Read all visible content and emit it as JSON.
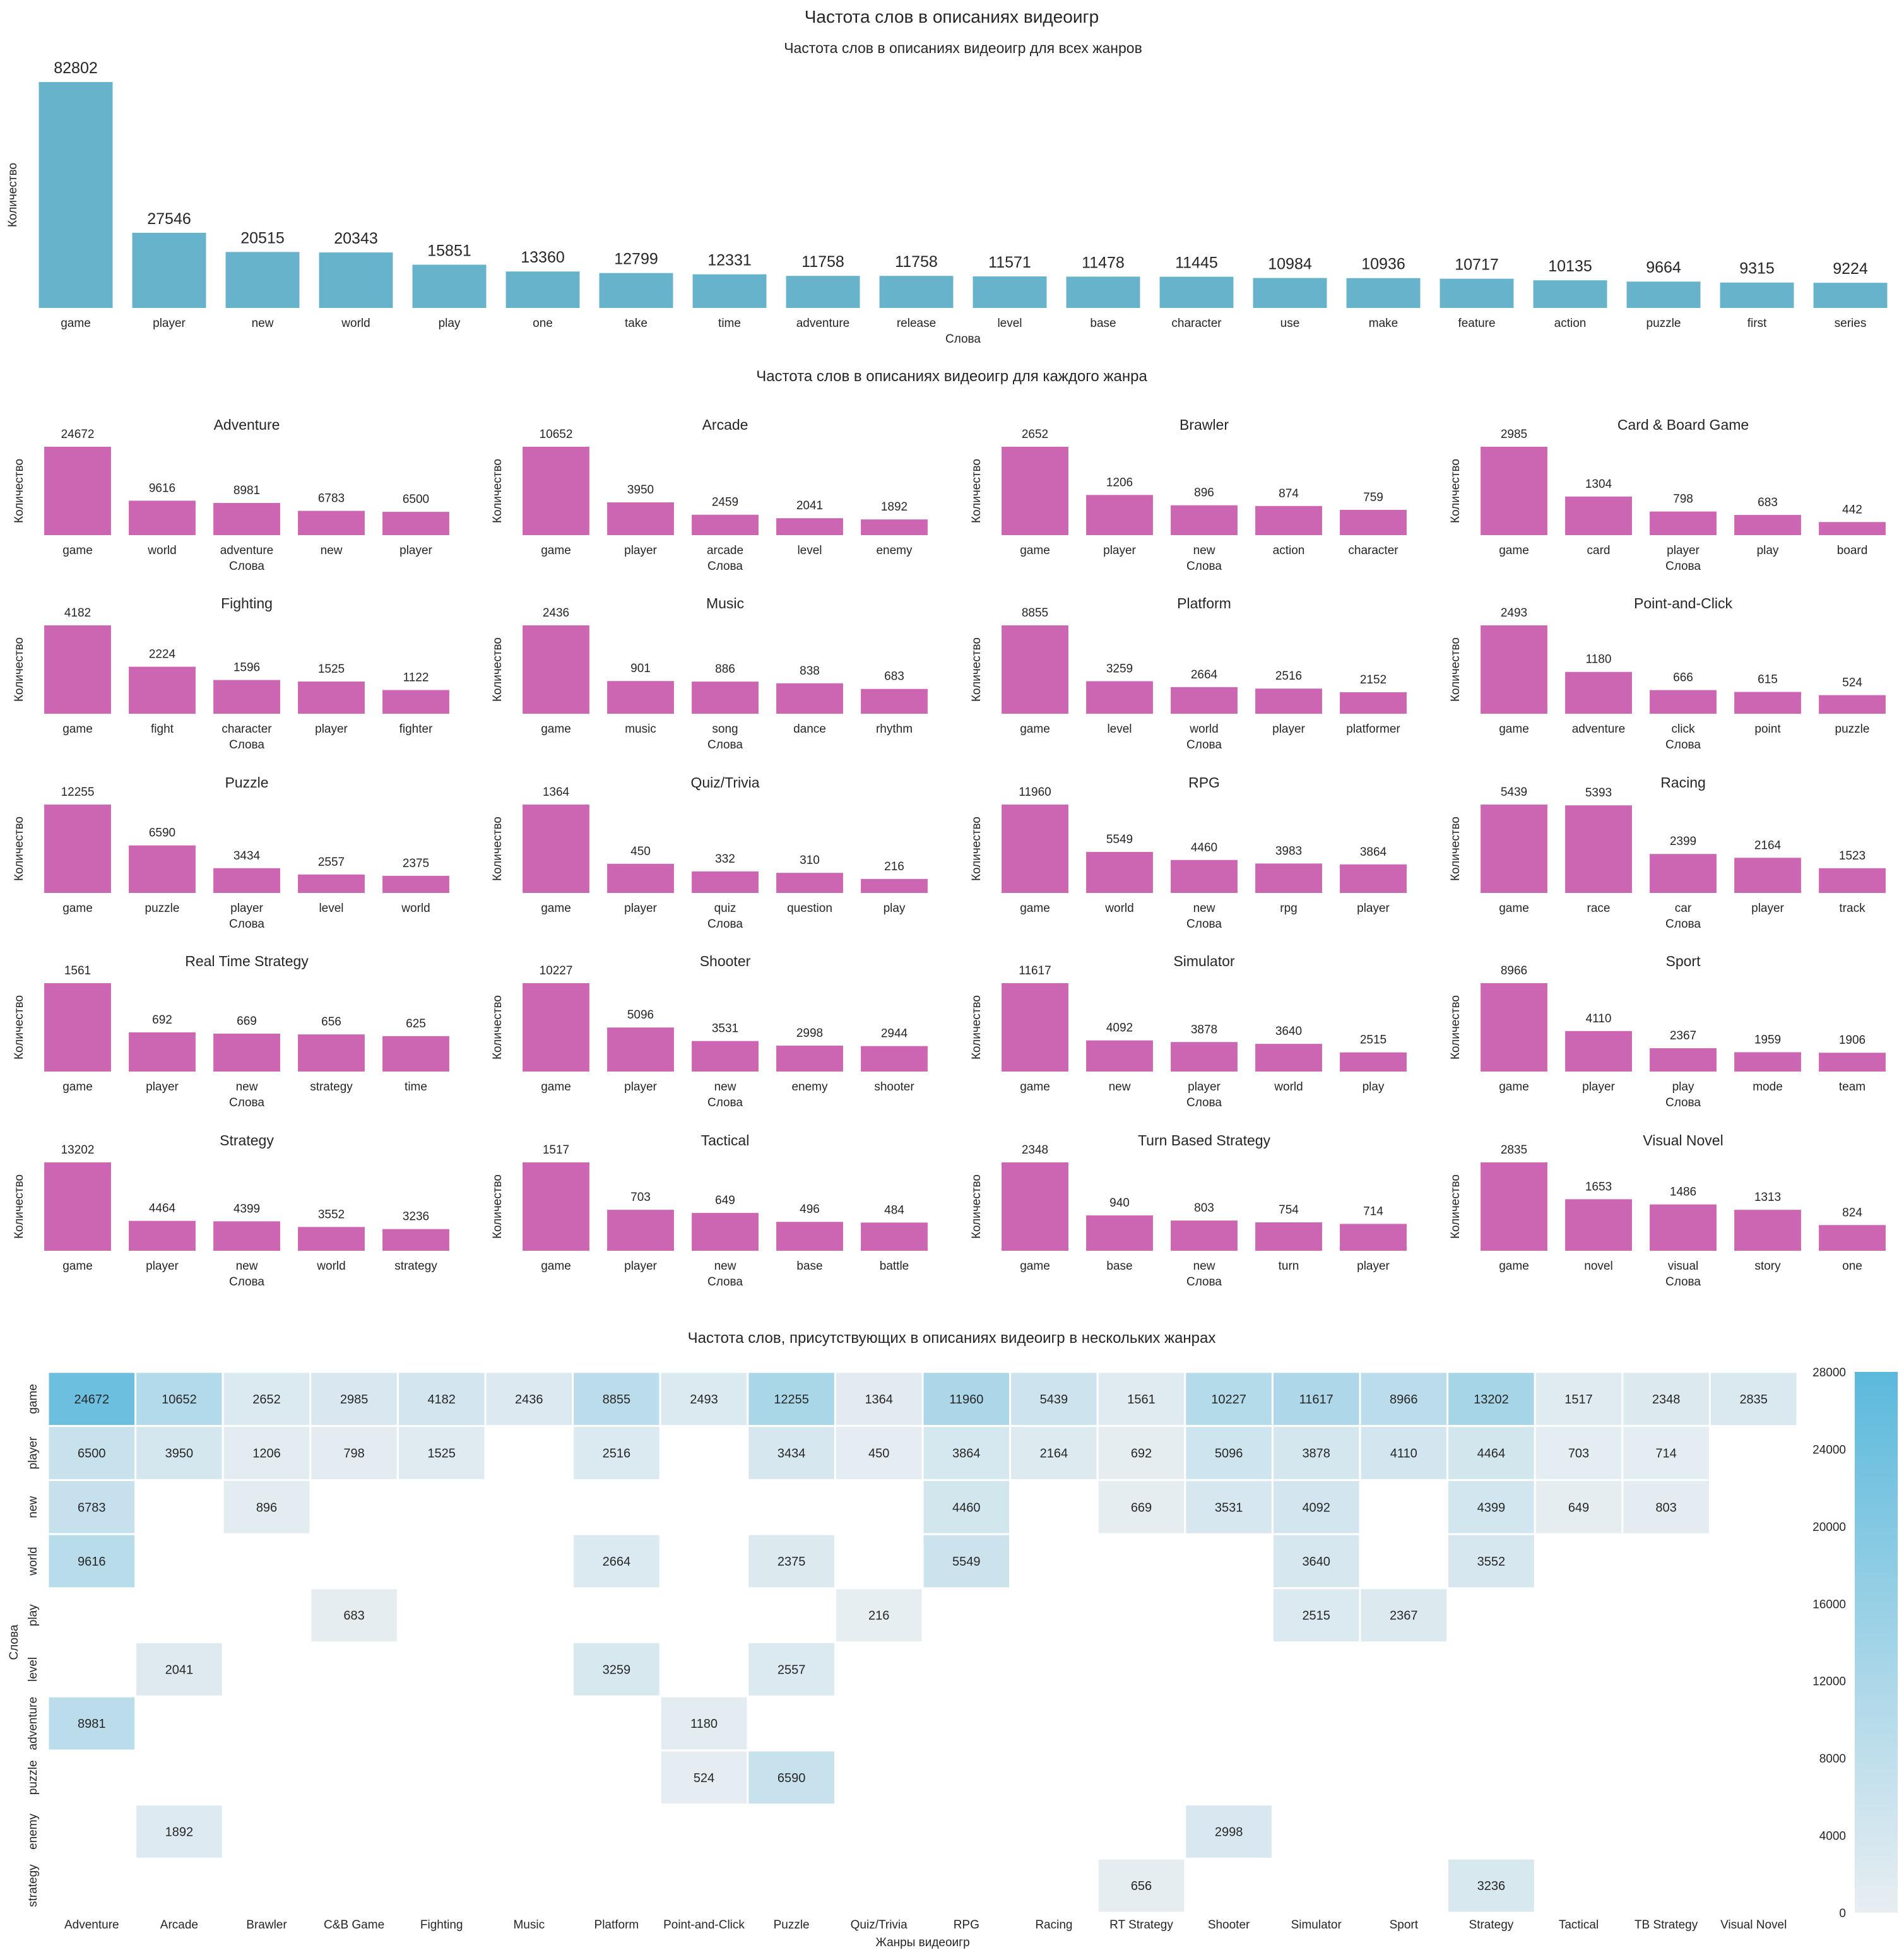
{
  "figure": {
    "title": "Частота слов в описаниях видеоигр",
    "section_genre_title": "Частота слов в описаниях видеоигр для каждого жанра"
  },
  "colors": {
    "top_bar": "#67b3cc",
    "genre_bar": "#cc66b2",
    "heat_low": "#e8eef2",
    "heat_high": "#5bb9dc"
  },
  "chart_data": [
    {
      "type": "bar",
      "title": "Частота слов в описаниях видеоигр для всех жанров",
      "xlabel": "Слова",
      "ylabel": "Количество",
      "categories": [
        "game",
        "player",
        "new",
        "world",
        "play",
        "one",
        "take",
        "time",
        "adventure",
        "release",
        "level",
        "base",
        "character",
        "use",
        "make",
        "feature",
        "action",
        "puzzle",
        "first",
        "series"
      ],
      "values": [
        82802,
        27546,
        20515,
        20343,
        15851,
        13360,
        12799,
        12331,
        11758,
        11758,
        11571,
        11478,
        11445,
        10984,
        10936,
        10717,
        10135,
        9664,
        9315,
        9224
      ]
    },
    {
      "type": "bar",
      "title": "Adventure",
      "xlabel": "Слова",
      "ylabel": "Количество",
      "categories": [
        "game",
        "world",
        "adventure",
        "new",
        "player"
      ],
      "values": [
        24672,
        9616,
        8981,
        6783,
        6500
      ]
    },
    {
      "type": "bar",
      "title": "Arcade",
      "xlabel": "Слова",
      "ylabel": "Количество",
      "categories": [
        "game",
        "player",
        "arcade",
        "level",
        "enemy"
      ],
      "values": [
        10652,
        3950,
        2459,
        2041,
        1892
      ]
    },
    {
      "type": "bar",
      "title": "Brawler",
      "xlabel": "Слова",
      "ylabel": "Количество",
      "categories": [
        "game",
        "player",
        "new",
        "action",
        "character"
      ],
      "values": [
        2652,
        1206,
        896,
        874,
        759
      ]
    },
    {
      "type": "bar",
      "title": "Card & Board Game",
      "xlabel": "Слова",
      "ylabel": "Количество",
      "categories": [
        "game",
        "card",
        "player",
        "play",
        "board"
      ],
      "values": [
        2985,
        1304,
        798,
        683,
        442
      ]
    },
    {
      "type": "bar",
      "title": "Fighting",
      "xlabel": "Слова",
      "ylabel": "Количество",
      "categories": [
        "game",
        "fight",
        "character",
        "player",
        "fighter"
      ],
      "values": [
        4182,
        2224,
        1596,
        1525,
        1122
      ]
    },
    {
      "type": "bar",
      "title": "Music",
      "xlabel": "Слова",
      "ylabel": "Количество",
      "categories": [
        "game",
        "music",
        "song",
        "dance",
        "rhythm"
      ],
      "values": [
        2436,
        901,
        886,
        838,
        683
      ]
    },
    {
      "type": "bar",
      "title": "Platform",
      "xlabel": "Слова",
      "ylabel": "Количество",
      "categories": [
        "game",
        "level",
        "world",
        "player",
        "platformer"
      ],
      "values": [
        8855,
        3259,
        2664,
        2516,
        2152
      ]
    },
    {
      "type": "bar",
      "title": "Point-and-Click",
      "xlabel": "Слова",
      "ylabel": "Количество",
      "categories": [
        "game",
        "adventure",
        "click",
        "point",
        "puzzle"
      ],
      "values": [
        2493,
        1180,
        666,
        615,
        524
      ]
    },
    {
      "type": "bar",
      "title": "Puzzle",
      "xlabel": "Слова",
      "ylabel": "Количество",
      "categories": [
        "game",
        "puzzle",
        "player",
        "level",
        "world"
      ],
      "values": [
        12255,
        6590,
        3434,
        2557,
        2375
      ]
    },
    {
      "type": "bar",
      "title": "Quiz/Trivia",
      "xlabel": "Слова",
      "ylabel": "Количество",
      "categories": [
        "game",
        "player",
        "quiz",
        "question",
        "play"
      ],
      "values": [
        1364,
        450,
        332,
        310,
        216
      ]
    },
    {
      "type": "bar",
      "title": "RPG",
      "xlabel": "Слова",
      "ylabel": "Количество",
      "categories": [
        "game",
        "world",
        "new",
        "rpg",
        "player"
      ],
      "values": [
        11960,
        5549,
        4460,
        3983,
        3864
      ]
    },
    {
      "type": "bar",
      "title": "Racing",
      "xlabel": "Слова",
      "ylabel": "Количество",
      "categories": [
        "game",
        "race",
        "car",
        "player",
        "track"
      ],
      "values": [
        5439,
        5393,
        2399,
        2164,
        1523
      ]
    },
    {
      "type": "bar",
      "title": "Real Time Strategy",
      "xlabel": "Слова",
      "ylabel": "Количество",
      "categories": [
        "game",
        "player",
        "new",
        "strategy",
        "time"
      ],
      "values": [
        1561,
        692,
        669,
        656,
        625
      ]
    },
    {
      "type": "bar",
      "title": "Shooter",
      "xlabel": "Слова",
      "ylabel": "Количество",
      "categories": [
        "game",
        "player",
        "new",
        "enemy",
        "shooter"
      ],
      "values": [
        10227,
        5096,
        3531,
        2998,
        2944
      ]
    },
    {
      "type": "bar",
      "title": "Simulator",
      "xlabel": "Слова",
      "ylabel": "Количество",
      "categories": [
        "game",
        "new",
        "player",
        "world",
        "play"
      ],
      "values": [
        11617,
        4092,
        3878,
        3640,
        2515
      ]
    },
    {
      "type": "bar",
      "title": "Sport",
      "xlabel": "Слова",
      "ylabel": "Количество",
      "categories": [
        "game",
        "player",
        "play",
        "mode",
        "team"
      ],
      "values": [
        8966,
        4110,
        2367,
        1959,
        1906
      ]
    },
    {
      "type": "bar",
      "title": "Strategy",
      "xlabel": "Слова",
      "ylabel": "Количество",
      "categories": [
        "game",
        "player",
        "new",
        "world",
        "strategy"
      ],
      "values": [
        13202,
        4464,
        4399,
        3552,
        3236
      ]
    },
    {
      "type": "bar",
      "title": "Tactical",
      "xlabel": "Слова",
      "ylabel": "Количество",
      "categories": [
        "game",
        "player",
        "new",
        "base",
        "battle"
      ],
      "values": [
        1517,
        703,
        649,
        496,
        484
      ]
    },
    {
      "type": "bar",
      "title": "Turn Based Strategy",
      "xlabel": "Слова",
      "ylabel": "Количество",
      "categories": [
        "game",
        "base",
        "new",
        "turn",
        "player"
      ],
      "values": [
        2348,
        940,
        803,
        754,
        714
      ]
    },
    {
      "type": "bar",
      "title": "Visual Novel",
      "xlabel": "Слова",
      "ylabel": "Количество",
      "categories": [
        "game",
        "novel",
        "visual",
        "story",
        "one"
      ],
      "values": [
        2835,
        1653,
        1486,
        1313,
        824
      ]
    },
    {
      "type": "heatmap",
      "title": "Частота слов, присутствующих в описаниях видеоигр в нескольких жанрах",
      "xlabel": "Жанры видеоигр",
      "ylabel": "Слова",
      "x": [
        "Adventure",
        "Arcade",
        "Brawler",
        "C&B Game",
        "Fighting",
        "Music",
        "Platform",
        "Point-and-Click",
        "Puzzle",
        "Quiz/Trivia",
        "RPG",
        "Racing",
        "RT Strategy",
        "Shooter",
        "Simulator",
        "Sport",
        "Strategy",
        "Tactical",
        "TB Strategy",
        "Visual Novel"
      ],
      "y": [
        "game",
        "player",
        "new",
        "world",
        "play",
        "level",
        "adventure",
        "puzzle",
        "enemy",
        "strategy"
      ],
      "values": [
        [
          24672,
          10652,
          2652,
          2985,
          4182,
          2436,
          8855,
          2493,
          12255,
          1364,
          11960,
          5439,
          1561,
          10227,
          11617,
          8966,
          13202,
          1517,
          2348,
          2835
        ],
        [
          6500,
          3950,
          1206,
          798,
          1525,
          null,
          2516,
          null,
          3434,
          450,
          3864,
          2164,
          692,
          5096,
          3878,
          4110,
          4464,
          703,
          714,
          null
        ],
        [
          6783,
          null,
          896,
          null,
          null,
          null,
          null,
          null,
          null,
          null,
          4460,
          null,
          669,
          3531,
          4092,
          null,
          4399,
          649,
          803,
          null
        ],
        [
          9616,
          null,
          null,
          null,
          null,
          null,
          2664,
          null,
          2375,
          null,
          5549,
          null,
          null,
          null,
          3640,
          null,
          3552,
          null,
          null,
          null
        ],
        [
          null,
          null,
          null,
          683,
          null,
          null,
          null,
          null,
          null,
          216,
          null,
          null,
          null,
          null,
          2515,
          2367,
          null,
          null,
          null,
          null
        ],
        [
          null,
          2041,
          null,
          null,
          null,
          null,
          3259,
          null,
          2557,
          null,
          null,
          null,
          null,
          null,
          null,
          null,
          null,
          null,
          null,
          null
        ],
        [
          8981,
          null,
          null,
          null,
          null,
          null,
          null,
          1180,
          null,
          null,
          null,
          null,
          null,
          null,
          null,
          null,
          null,
          null,
          null,
          null
        ],
        [
          null,
          null,
          null,
          null,
          null,
          null,
          null,
          524,
          6590,
          null,
          null,
          null,
          null,
          null,
          null,
          null,
          null,
          null,
          null,
          null
        ],
        [
          null,
          1892,
          null,
          null,
          null,
          null,
          null,
          null,
          null,
          null,
          null,
          null,
          null,
          2998,
          null,
          null,
          null,
          null,
          null,
          null
        ],
        [
          null,
          null,
          null,
          null,
          null,
          null,
          null,
          null,
          null,
          null,
          null,
          null,
          656,
          null,
          null,
          null,
          3236,
          null,
          null,
          null
        ]
      ],
      "colorbar": {
        "min": 0,
        "max": 28000,
        "ticks": [
          0,
          4000,
          8000,
          12000,
          16000,
          20000,
          24000,
          28000
        ]
      }
    }
  ]
}
